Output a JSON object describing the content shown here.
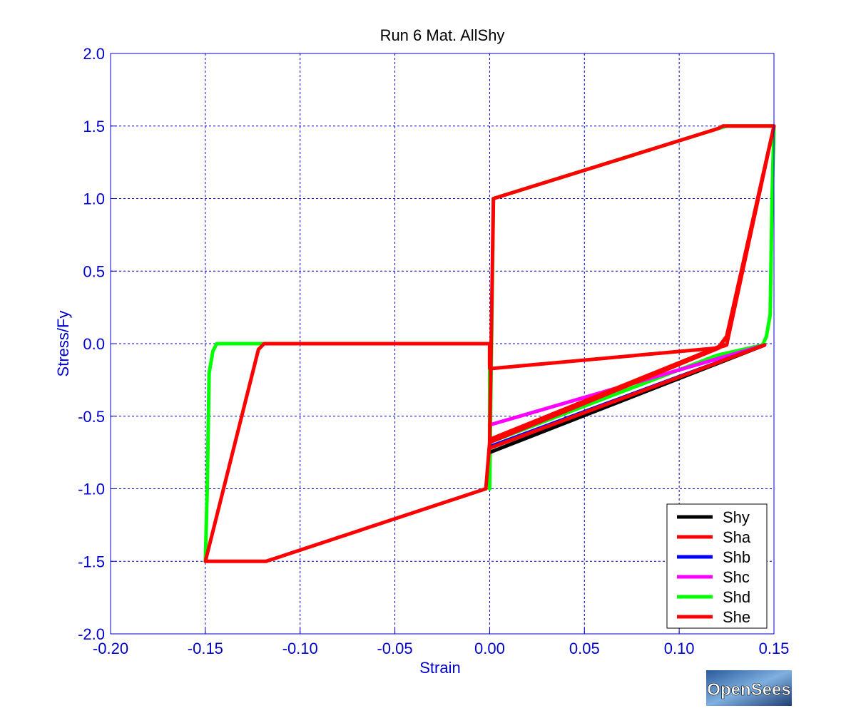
{
  "chart_data": {
    "type": "line",
    "title": "Run 6   Mat. AllShy",
    "xlabel": "Strain",
    "ylabel": "Stress/Fy",
    "xlim": [
      -0.2,
      0.15
    ],
    "ylim": [
      -2.0,
      2.0
    ],
    "xticks": [
      -0.2,
      -0.15,
      -0.1,
      -0.05,
      0.0,
      0.05,
      0.1,
      0.15
    ],
    "xtick_labels": [
      "-0.20",
      "-0.15",
      "-0.10",
      "-0.05",
      "0.00",
      "0.05",
      "0.10",
      "0.15"
    ],
    "yticks": [
      -2.0,
      -1.5,
      -1.0,
      -0.5,
      0.0,
      0.5,
      1.0,
      1.5,
      2.0
    ],
    "ytick_labels": [
      "-2.0",
      "-1.5",
      "-1.0",
      "-0.5",
      "0.0",
      "0.5",
      "1.0",
      "1.5",
      "2.0"
    ],
    "grid": true,
    "legend_position": "bottom-right",
    "series": [
      {
        "name": "Shy",
        "color": "#000000",
        "x": [
          0.0,
          0.145
        ],
        "y": [
          -0.75,
          -0.01
        ]
      },
      {
        "name": "Sha",
        "color": "#ff0000",
        "x": [
          0.0,
          0.145
        ],
        "y": [
          -0.72,
          -0.01
        ]
      },
      {
        "name": "Shb",
        "color": "#0000ff",
        "x": [
          0.0,
          0.145
        ],
        "y": [
          -0.71,
          -0.01
        ]
      },
      {
        "name": "Shc",
        "color": "#ff00ff",
        "x": [
          0.0,
          0.145
        ],
        "y": [
          -0.56,
          -0.01
        ]
      },
      {
        "name": "Shd",
        "color": "#00ff00",
        "x": [
          -0.15,
          -0.149,
          -0.148,
          -0.146,
          -0.144,
          -0.12,
          0.0,
          0.0,
          0.002,
          0.12,
          0.125,
          0.15,
          0.149,
          0.148,
          0.146,
          0.144,
          0.12,
          0.0
        ],
        "y": [
          -1.5,
          -1.0,
          -0.2,
          -0.05,
          0.0,
          0.0,
          0.0,
          -1.0,
          1.0,
          1.48,
          1.5,
          1.5,
          1.0,
          0.2,
          0.05,
          -0.01,
          -0.08,
          -0.68
        ]
      },
      {
        "name": "She",
        "color": "#ff0000",
        "x": [
          0.0,
          0.002,
          0.12,
          0.123,
          0.15,
          0.125,
          0.121,
          0.0,
          -0.002,
          -0.118,
          -0.15,
          -0.122,
          -0.119,
          0.0,
          0.0,
          0.002,
          0.12,
          0.125,
          0.15,
          0.125,
          0.121,
          0.0
        ],
        "y": [
          -0.68,
          1.0,
          1.48,
          1.5,
          1.5,
          0.05,
          -0.03,
          -0.68,
          -1.0,
          -1.5,
          -1.5,
          -0.04,
          0.0,
          0.0,
          -0.17,
          -0.17,
          -0.03,
          -0.01,
          1.5,
          0.05,
          -0.02,
          -0.66
        ]
      }
    ]
  },
  "logo": {
    "text": "OpenSees"
  }
}
